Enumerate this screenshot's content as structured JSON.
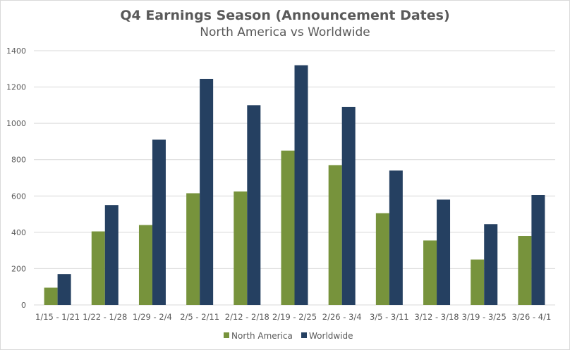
{
  "chart_data": {
    "type": "bar",
    "title": "Q4 Earnings Season (Announcement Dates)",
    "subtitle": "North America vs Worldwide",
    "xlabel": "",
    "ylabel": "",
    "categories": [
      "1/15 - 1/21",
      "1/22 - 1/28",
      "1/29 - 2/4",
      "2/5 - 2/11",
      "2/12 - 2/18",
      "2/19 - 2/25",
      "2/26 - 3/4",
      "3/5 - 3/11",
      "3/12 - 3/18",
      "3/19 - 3/25",
      "3/26 - 4/1"
    ],
    "series": [
      {
        "name": "North America",
        "color": "#77933c",
        "values": [
          95,
          405,
          440,
          615,
          625,
          850,
          770,
          505,
          355,
          250,
          380
        ]
      },
      {
        "name": "Worldwide",
        "color": "#254061",
        "values": [
          170,
          550,
          910,
          1245,
          1100,
          1320,
          1090,
          740,
          580,
          445,
          605
        ]
      }
    ],
    "ylim": [
      0,
      1400
    ],
    "yticks": [
      0,
      200,
      400,
      600,
      800,
      1000,
      1200,
      1400
    ],
    "grid": true,
    "legend_position": "bottom"
  }
}
